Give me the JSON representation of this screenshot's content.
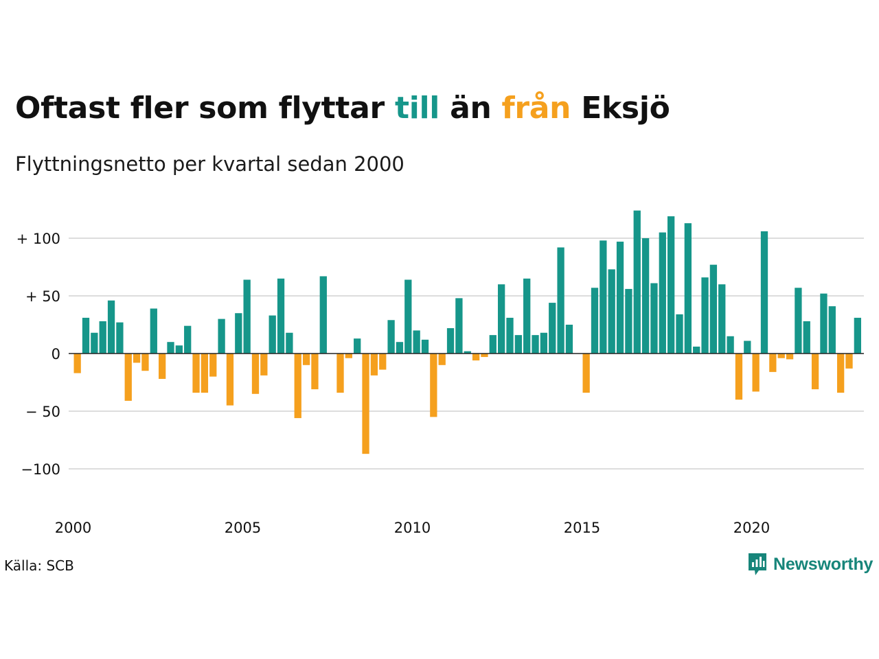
{
  "title": {
    "part1": "Oftast fler som flyttar ",
    "till": "till",
    "part2": " än ",
    "fran": "från",
    "part3": " Eksjö"
  },
  "subtitle": "Flyttningsnetto per kvartal sedan 2000",
  "source": "Källa: SCB",
  "logo": {
    "text": "Newsworthy",
    "icon": "bar-chart-speech-bubble-icon"
  },
  "colors": {
    "positive": "#16968a",
    "negative": "#f5a01e",
    "grid": "#dddddd",
    "zero_line": "#222222",
    "logo": "#17857a"
  },
  "chart_data": {
    "type": "bar",
    "title": "Flyttningsnetto per kvartal sedan 2000",
    "xlabel": "",
    "ylabel": "",
    "ylim": [
      -135,
      125
    ],
    "yticks": [
      {
        "value": 100,
        "label": "+ 100"
      },
      {
        "value": 50,
        "label": "+  50"
      },
      {
        "value": 0,
        "label": "0"
      },
      {
        "value": -50,
        "label": "− 50"
      },
      {
        "value": -100,
        "label": "−100"
      }
    ],
    "xticks": [
      {
        "index": 0,
        "label": "2000"
      },
      {
        "index": 20,
        "label": "2005"
      },
      {
        "index": 40,
        "label": "2010"
      },
      {
        "index": 60,
        "label": "2015"
      },
      {
        "index": 80,
        "label": "2020"
      }
    ],
    "grid": true,
    "legend": "none",
    "start": "2000 Q1",
    "values": [
      -17,
      31,
      18,
      28,
      46,
      27,
      -41,
      -8,
      -15,
      39,
      -22,
      10,
      7,
      24,
      -34,
      -34,
      -20,
      30,
      -45,
      35,
      64,
      -35,
      -19,
      33,
      65,
      18,
      -56,
      -10,
      -31,
      67,
      0,
      -34,
      -4,
      13,
      -87,
      -19,
      -14,
      29,
      10,
      64,
      20,
      12,
      -55,
      -10,
      22,
      48,
      2,
      -6,
      -3,
      16,
      60,
      31,
      16,
      65,
      16,
      18,
      44,
      92,
      25,
      0,
      -34,
      57,
      98,
      73,
      97,
      56,
      124,
      100,
      61,
      105,
      119,
      34,
      113,
      6,
      66,
      77,
      60,
      15,
      -40,
      11,
      -33,
      106,
      -16,
      -4,
      -5,
      57,
      28,
      -31,
      52,
      41,
      -34,
      -13,
      31
    ]
  }
}
